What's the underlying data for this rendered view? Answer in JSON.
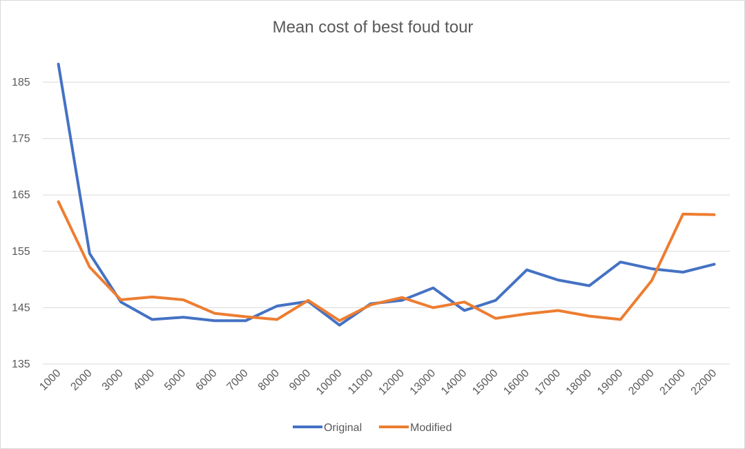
{
  "chart_data": {
    "type": "line",
    "title": "Mean cost of best foud tour",
    "xlabel": "",
    "ylabel": "",
    "categories": [
      "1000",
      "2000",
      "3000",
      "4000",
      "5000",
      "6000",
      "7000",
      "8000",
      "9000",
      "10000",
      "11000",
      "12000",
      "13000",
      "14000",
      "15000",
      "16000",
      "17000",
      "18000",
      "19000",
      "20000",
      "21000",
      "22000"
    ],
    "ylim": [
      135,
      188
    ],
    "yticks": [
      "135",
      "145",
      "155",
      "165",
      "175",
      "185"
    ],
    "grid": "horizontal",
    "legend_position": "bottom",
    "series": [
      {
        "name": "Original",
        "color": "#4472c4",
        "values": [
          188.2,
          154.6,
          146.0,
          142.9,
          143.3,
          142.7,
          142.7,
          145.3,
          146.1,
          141.9,
          145.7,
          146.3,
          148.5,
          144.5,
          146.3,
          151.7,
          149.9,
          148.9,
          153.1,
          151.9,
          151.3,
          152.7
        ]
      },
      {
        "name": "Modified",
        "color": "#ed7d31",
        "values": [
          163.8,
          152.2,
          146.4,
          146.9,
          146.4,
          144.0,
          143.4,
          142.9,
          146.3,
          142.7,
          145.5,
          146.8,
          145.0,
          146.0,
          143.1,
          143.9,
          144.5,
          143.5,
          142.9,
          149.8,
          161.6,
          161.5
        ]
      }
    ]
  }
}
